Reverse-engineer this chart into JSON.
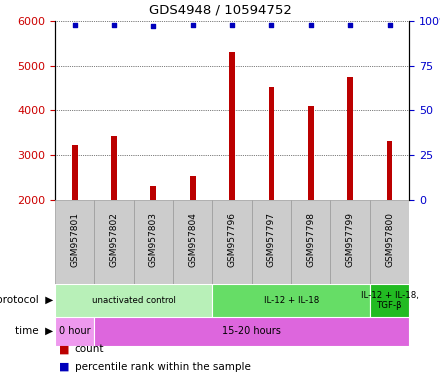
{
  "title": "GDS4948 / 10594752",
  "samples": [
    "GSM957801",
    "GSM957802",
    "GSM957803",
    "GSM957804",
    "GSM957796",
    "GSM957797",
    "GSM957798",
    "GSM957799",
    "GSM957800"
  ],
  "counts": [
    3230,
    3420,
    2310,
    2520,
    5300,
    4530,
    4100,
    4750,
    3310
  ],
  "percentile_ranks": [
    98,
    98,
    97,
    98,
    98,
    98,
    98,
    98,
    98
  ],
  "bar_color": "#bb0000",
  "dot_color": "#0000bb",
  "ylim_left": [
    2000,
    6000
  ],
  "ylim_right": [
    0,
    100
  ],
  "yticks_left": [
    2000,
    3000,
    4000,
    5000,
    6000
  ],
  "yticks_right": [
    0,
    25,
    50,
    75,
    100
  ],
  "protocol_groups": [
    {
      "label": "unactivated control",
      "start": 0,
      "end": 4,
      "color": "#b8f0b8"
    },
    {
      "label": "IL-12 + IL-18",
      "start": 4,
      "end": 8,
      "color": "#66dd66"
    },
    {
      "label": "IL-12 + IL-18,\nTGF-β",
      "start": 8,
      "end": 9,
      "color": "#22bb22"
    }
  ],
  "time_groups": [
    {
      "label": "0 hour",
      "start": 0,
      "end": 1,
      "color": "#ee99ee"
    },
    {
      "label": "15-20 hours",
      "start": 1,
      "end": 9,
      "color": "#dd66dd"
    }
  ],
  "legend_count_label": "count",
  "legend_pct_label": "percentile rank within the sample",
  "left_tick_color": "#cc0000",
  "right_tick_color": "#0000cc",
  "sample_box_color": "#cccccc",
  "sample_box_edge": "#999999"
}
